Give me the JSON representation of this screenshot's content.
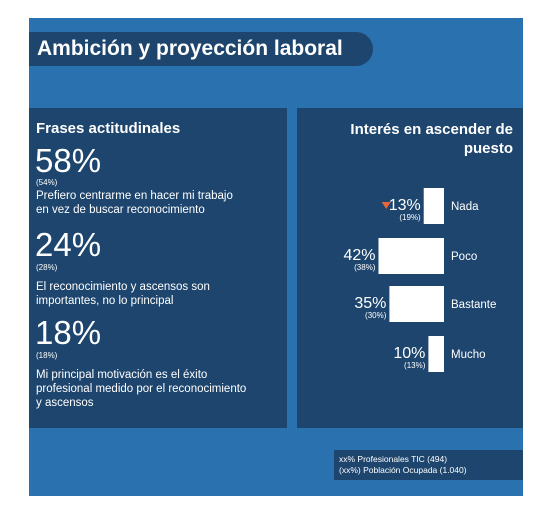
{
  "title": "Ambición y proyección laboral",
  "left": {
    "heading": "Frases actitudinales",
    "items": [
      {
        "pct": "58%",
        "sub": "(54%)",
        "text": [
          "Prefiero centrarme en hacer mi trabajo",
          "en vez de buscar reconocimiento"
        ]
      },
      {
        "pct": "24%",
        "sub": "(28%)",
        "text": [
          "El reconocimiento y ascensos son",
          "importantes, no lo principal"
        ]
      },
      {
        "pct": "18%",
        "sub": "(18%)",
        "text": [
          "Mi principal motivación es el éxito",
          "profesional medido por el reconocimiento",
          "y ascensos"
        ]
      }
    ]
  },
  "chart_data": {
    "type": "bar",
    "title": "Interés en ascender de puesto",
    "title_lines": [
      "Interés en ascender de",
      "puesto"
    ],
    "categories": [
      "Nada",
      "Poco",
      "Bastante",
      "Mucho"
    ],
    "series": [
      {
        "values": [
          13,
          42,
          35,
          10
        ]
      },
      {
        "values": [
          19,
          38,
          30,
          13
        ]
      }
    ],
    "value_labels": [
      "13%",
      "42%",
      "35%",
      "10%"
    ],
    "secondary_labels": [
      "(19%)",
      "(38%)",
      "(30%)",
      "(13%)"
    ],
    "marker_on": "Nada",
    "marker_color": "#e8663d",
    "bar_color": "#ffffff"
  },
  "legend": {
    "line1": "xx%  Profesionales TIC (494)",
    "line2": "(xx%) Población Ocupada (1.040)"
  }
}
